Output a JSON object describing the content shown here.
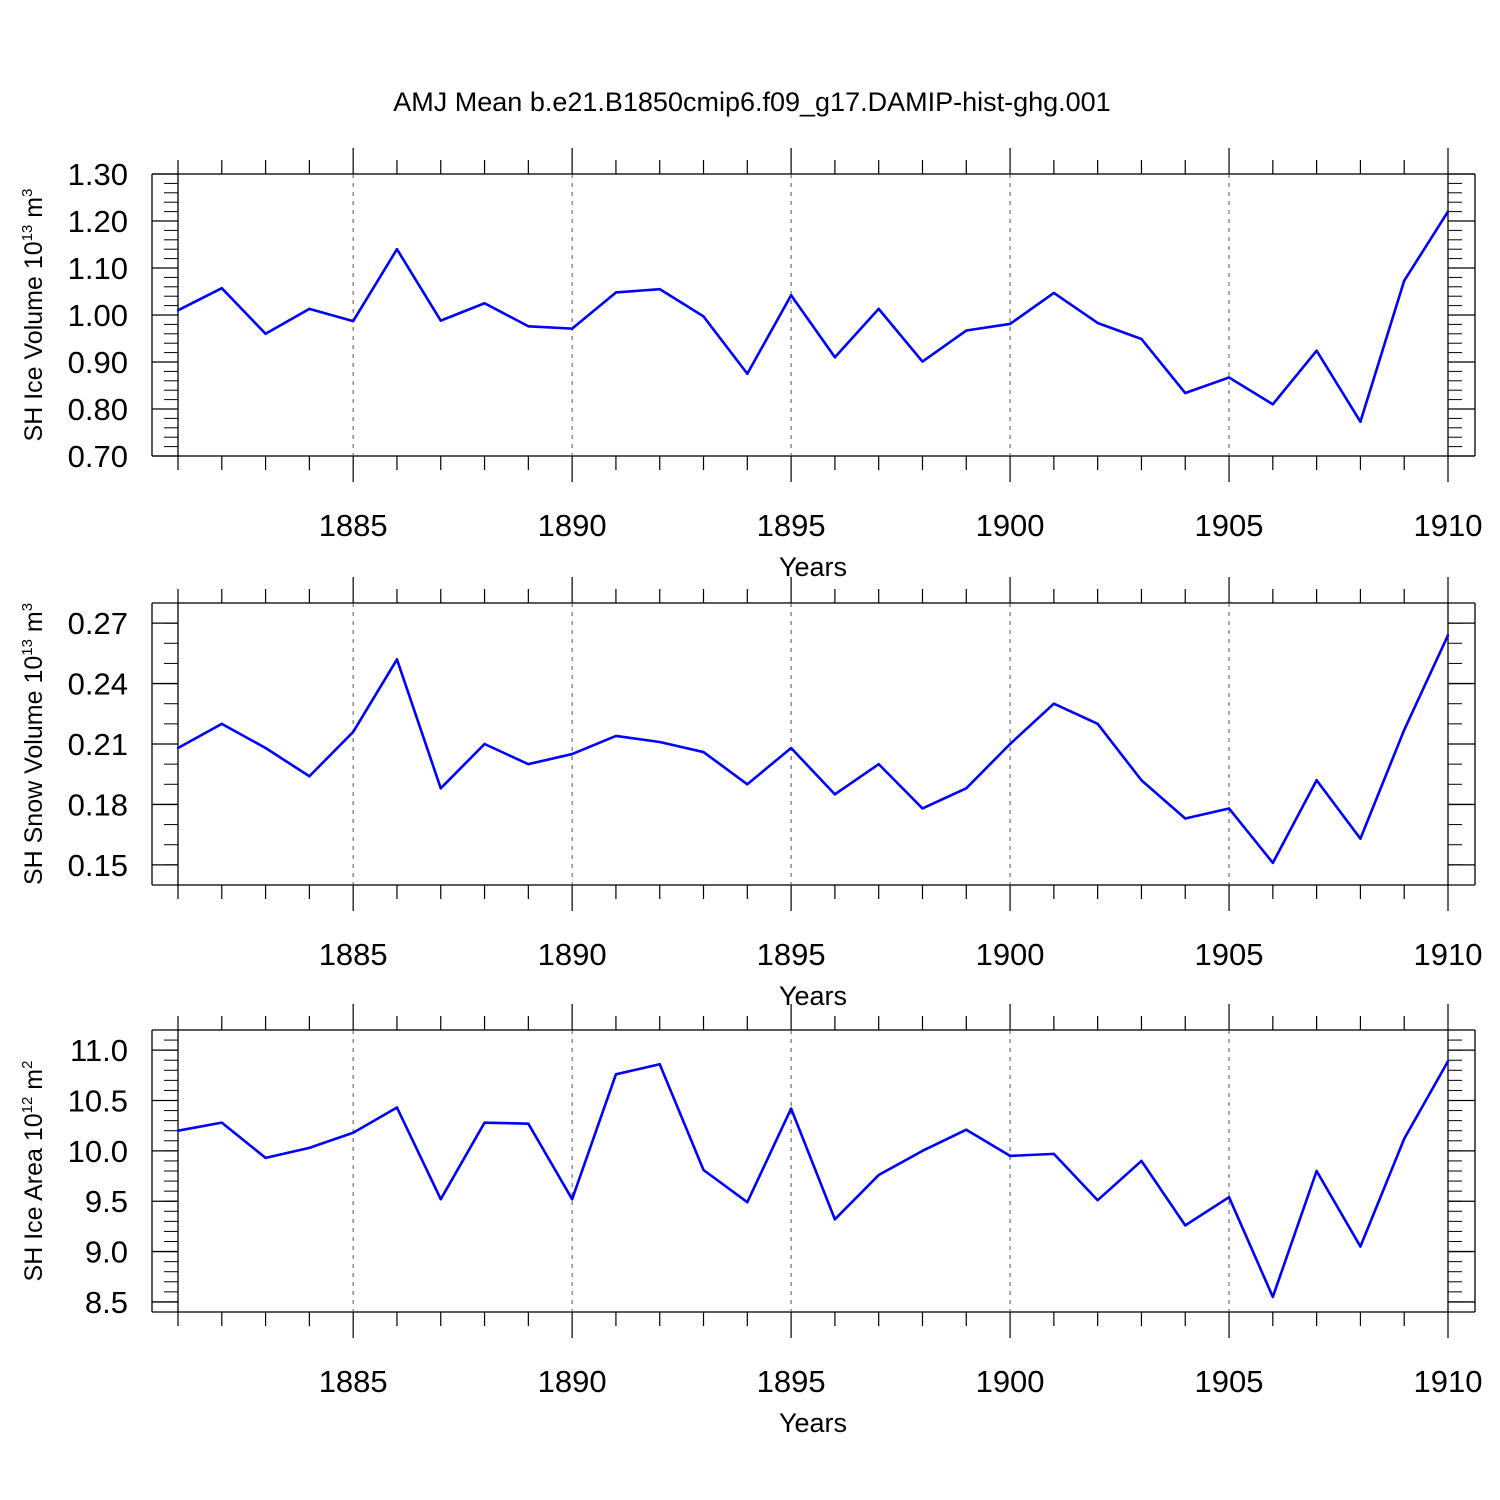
{
  "title": "AMJ Mean b.e21.B1850cmip6.f09_g17.DAMIP-hist-ghg.001",
  "colors": {
    "line": "#0000ff",
    "axis": "#000000",
    "grid": "#555555"
  },
  "chart_data": [
    {
      "type": "line",
      "title": "AMJ Mean b.e21.B1850cmip6.f09_g17.DAMIP-hist-ghg.001",
      "xlabel": "Years",
      "ylabel": {
        "prefix": "SH Ice Volume 10",
        "exp": "13",
        "unit": " m",
        "unit_exp": "3"
      },
      "xlim": [
        1881,
        1910
      ],
      "ylim": [
        0.7,
        1.3
      ],
      "yticks": [
        0.7,
        0.8,
        0.9,
        1.0,
        1.1,
        1.2,
        1.3
      ],
      "ytick_labels": [
        "0.70",
        "0.80",
        "0.90",
        "1.00",
        "1.10",
        "1.20",
        "1.30"
      ],
      "ytick_minor_step": 0.02,
      "xticks": [
        1885,
        1890,
        1895,
        1900,
        1905,
        1910
      ],
      "xtick_labels": [
        "1885",
        "1890",
        "1895",
        "1900",
        "1905",
        "1910"
      ],
      "grid": "vertical dashed at major x ticks",
      "x": [
        1881,
        1882,
        1883,
        1884,
        1885,
        1886,
        1887,
        1888,
        1889,
        1890,
        1891,
        1892,
        1893,
        1894,
        1895,
        1896,
        1897,
        1898,
        1899,
        1900,
        1901,
        1902,
        1903,
        1904,
        1905,
        1906,
        1907,
        1908,
        1909,
        1910
      ],
      "values": [
        1.01,
        1.057,
        0.96,
        1.013,
        0.987,
        1.14,
        0.988,
        1.025,
        0.976,
        0.971,
        1.048,
        1.055,
        0.997,
        0.875,
        1.042,
        0.91,
        1.013,
        0.901,
        0.967,
        0.981,
        1.047,
        0.983,
        0.949,
        0.834,
        0.867,
        0.81,
        0.924,
        0.773,
        1.073,
        1.22
      ]
    },
    {
      "type": "line",
      "xlabel": "Years",
      "ylabel": {
        "prefix": "SH Snow Volume 10",
        "exp": "13",
        "unit": " m",
        "unit_exp": "3"
      },
      "xlim": [
        1881,
        1910
      ],
      "ylim": [
        0.14,
        0.28
      ],
      "yticks": [
        0.15,
        0.18,
        0.21,
        0.24,
        0.27
      ],
      "ytick_labels": [
        "0.15",
        "0.18",
        "0.21",
        "0.24",
        "0.27"
      ],
      "ytick_minor_step": 0.01,
      "xticks": [
        1885,
        1890,
        1895,
        1900,
        1905,
        1910
      ],
      "xtick_labels": [
        "1885",
        "1890",
        "1895",
        "1900",
        "1905",
        "1910"
      ],
      "grid": "vertical dashed at major x ticks",
      "x": [
        1881,
        1882,
        1883,
        1884,
        1885,
        1886,
        1887,
        1888,
        1889,
        1890,
        1891,
        1892,
        1893,
        1894,
        1895,
        1896,
        1897,
        1898,
        1899,
        1900,
        1901,
        1902,
        1903,
        1904,
        1905,
        1906,
        1907,
        1908,
        1909,
        1910
      ],
      "values": [
        0.208,
        0.22,
        0.208,
        0.194,
        0.216,
        0.252,
        0.188,
        0.21,
        0.2,
        0.205,
        0.214,
        0.211,
        0.206,
        0.19,
        0.208,
        0.185,
        0.2,
        0.178,
        0.188,
        0.21,
        0.23,
        0.22,
        0.192,
        0.173,
        0.178,
        0.151,
        0.192,
        0.163,
        0.217,
        0.264
      ]
    },
    {
      "type": "line",
      "xlabel": "Years",
      "ylabel": {
        "prefix": "SH Ice Area 10",
        "exp": "12",
        "unit": " m",
        "unit_exp": "2"
      },
      "xlim": [
        1881,
        1910
      ],
      "ylim": [
        8.4,
        11.2
      ],
      "yticks": [
        8.5,
        9.0,
        9.5,
        10.0,
        10.5,
        11.0
      ],
      "ytick_labels": [
        "8.5",
        "9.0",
        "9.5",
        "10.0",
        "10.5",
        "11.0"
      ],
      "ytick_minor_step": 0.1,
      "xticks": [
        1885,
        1890,
        1895,
        1900,
        1905,
        1910
      ],
      "xtick_labels": [
        "1885",
        "1890",
        "1895",
        "1900",
        "1905",
        "1910"
      ],
      "grid": "vertical dashed at major x ticks",
      "x": [
        1881,
        1882,
        1883,
        1884,
        1885,
        1886,
        1887,
        1888,
        1889,
        1890,
        1891,
        1892,
        1893,
        1894,
        1895,
        1896,
        1897,
        1898,
        1899,
        1900,
        1901,
        1902,
        1903,
        1904,
        1905,
        1906,
        1907,
        1908,
        1909,
        1910
      ],
      "values": [
        10.2,
        10.28,
        9.93,
        10.03,
        10.18,
        10.43,
        9.52,
        10.28,
        10.27,
        9.52,
        10.76,
        10.86,
        9.81,
        9.49,
        10.42,
        9.32,
        9.76,
        10.0,
        10.21,
        9.95,
        9.97,
        9.51,
        9.9,
        9.26,
        9.54,
        8.55,
        9.8,
        9.05,
        10.12,
        10.89
      ]
    }
  ]
}
